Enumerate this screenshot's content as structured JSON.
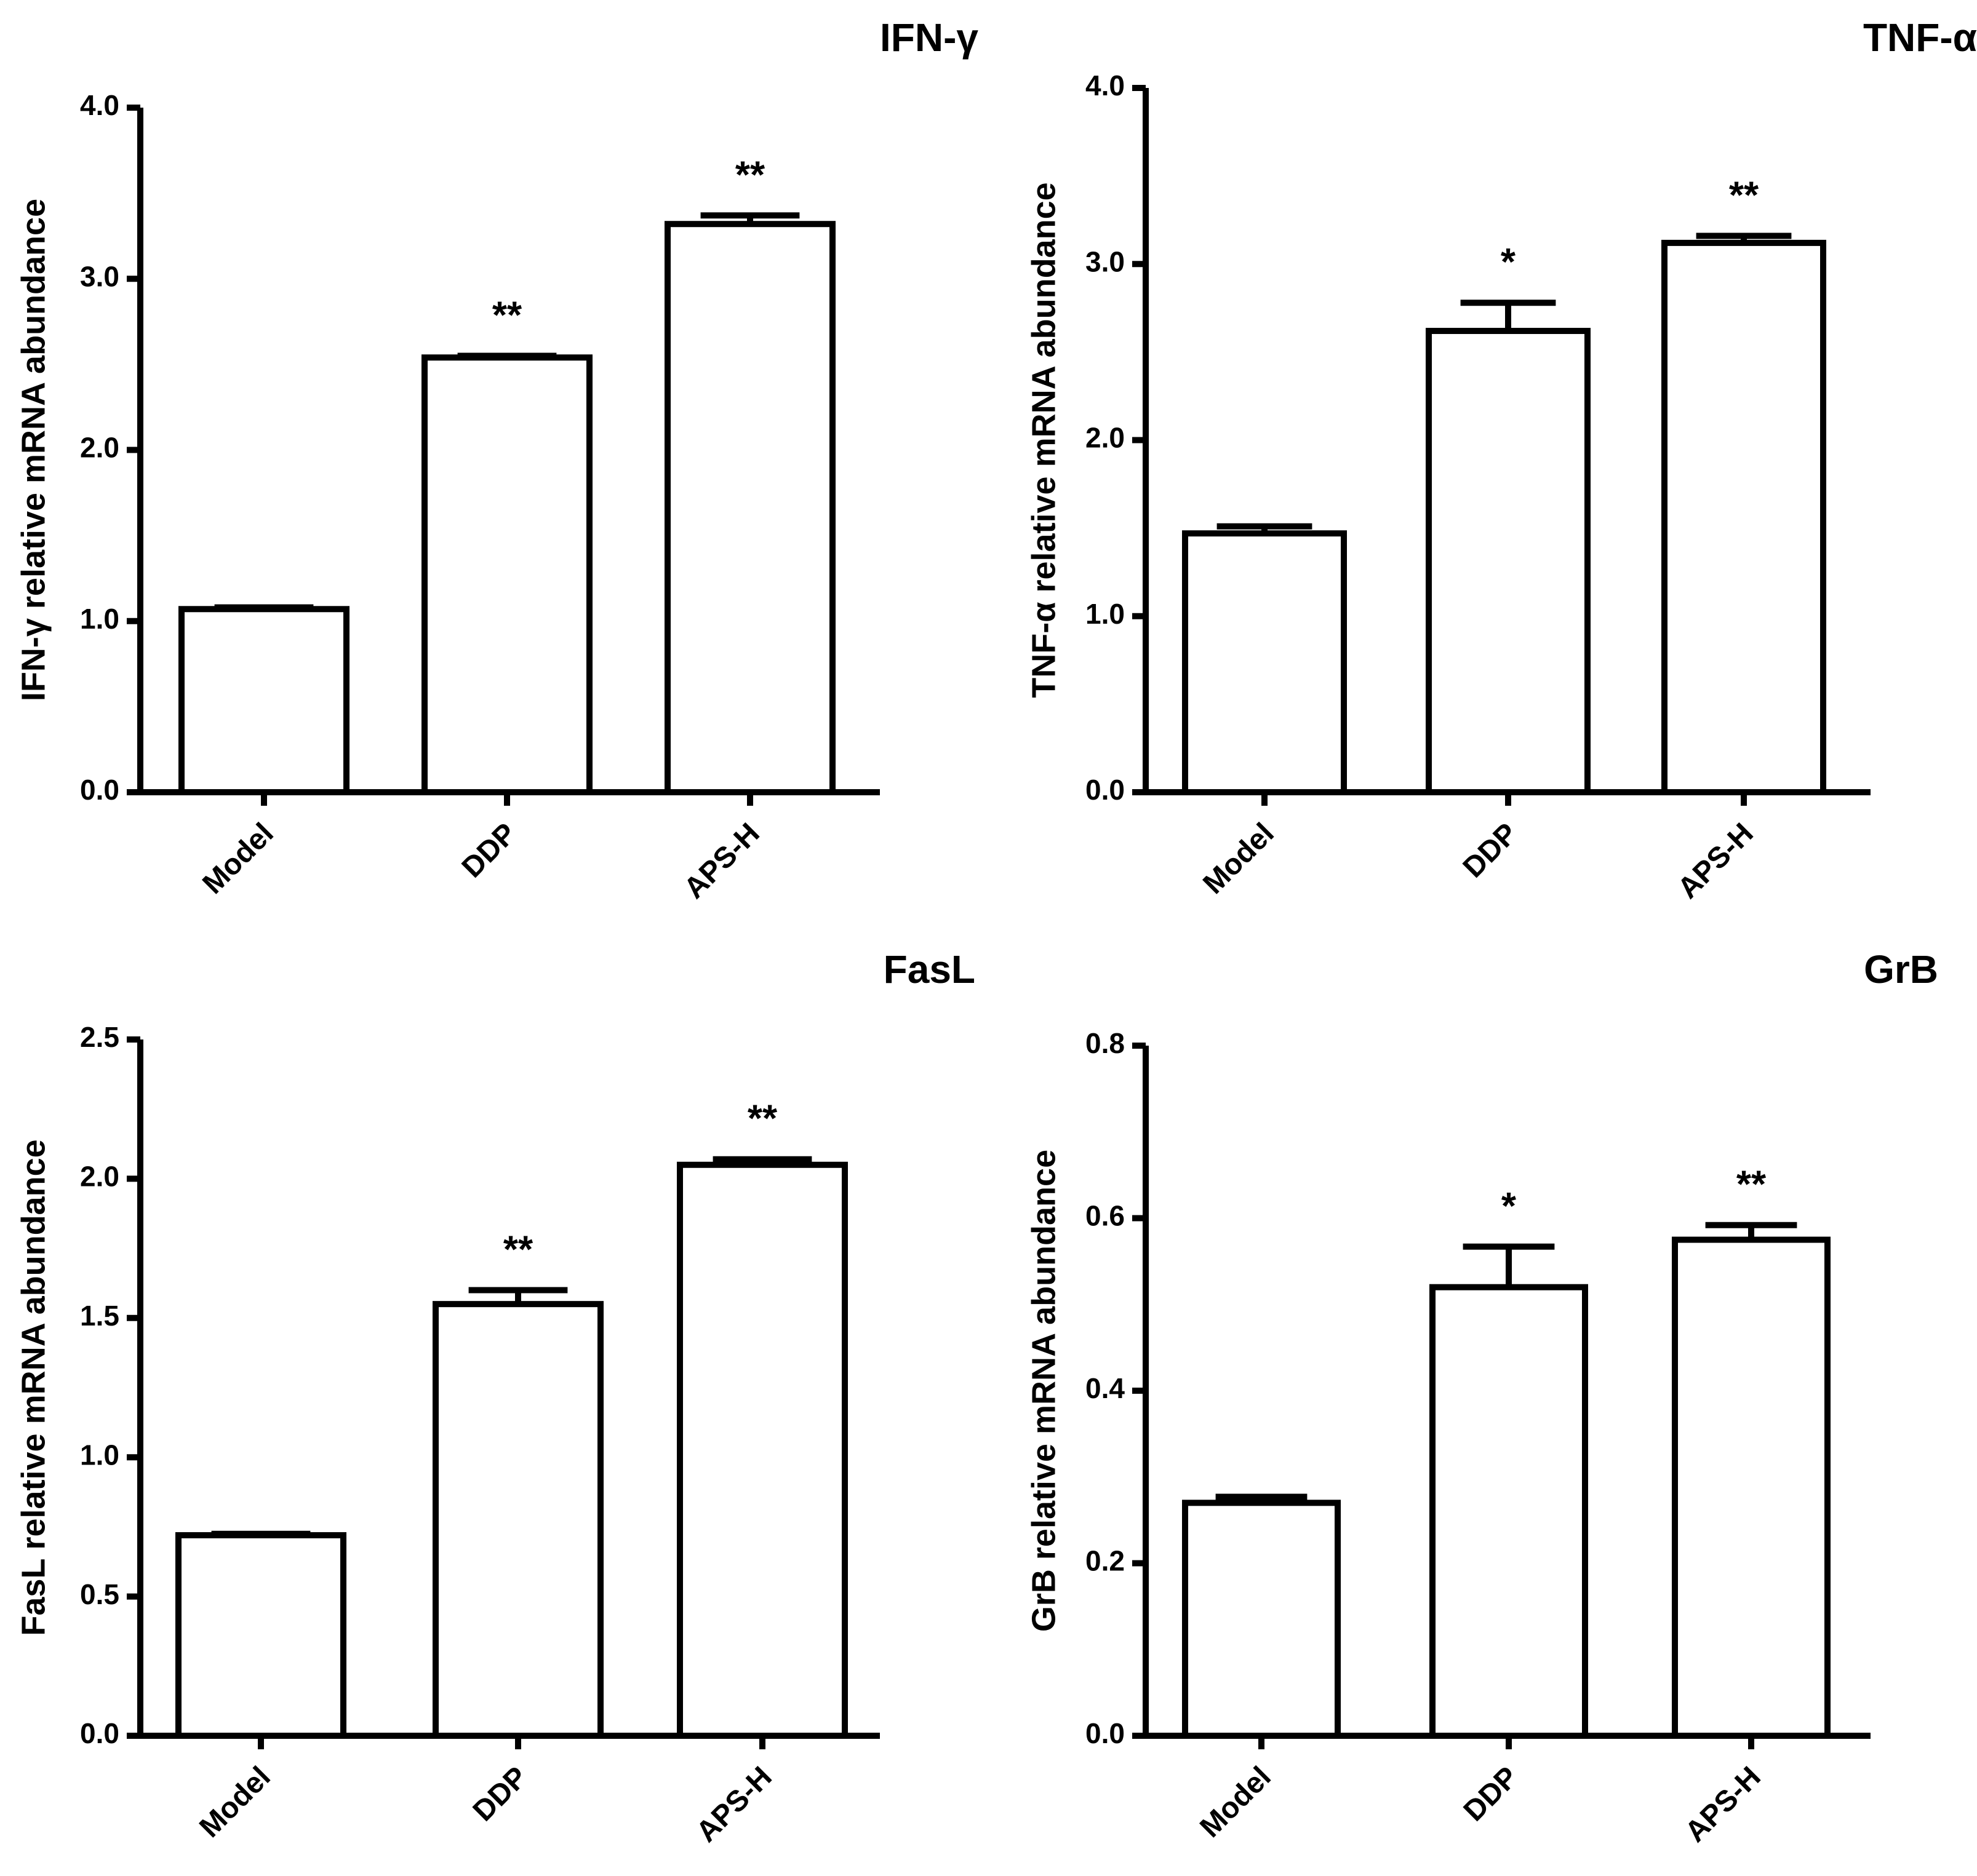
{
  "chart_data": [
    {
      "type": "bar",
      "title": "IFN-γ",
      "ylabel": "IFN-γ  relative mRNA abundance",
      "xlabel": "",
      "categories": [
        "Model",
        "DDP",
        "APS-H"
      ],
      "values": [
        1.07,
        2.54,
        3.32
      ],
      "errors": [
        0.01,
        0.01,
        0.05
      ],
      "significance": [
        "",
        "**",
        "**"
      ],
      "ylim": [
        0.0,
        4.0
      ],
      "yticks": [
        "0.0",
        "1.0",
        "2.0",
        "3.0",
        "4.0"
      ]
    },
    {
      "type": "bar",
      "title": "TNF-α",
      "ylabel": "TNF-α  relative mRNA abundance",
      "xlabel": "",
      "categories": [
        "Model",
        "DDP",
        "APS-H"
      ],
      "values": [
        1.47,
        2.62,
        3.12
      ],
      "errors": [
        0.04,
        0.16,
        0.04
      ],
      "significance": [
        "",
        "*",
        "**"
      ],
      "ylim": [
        0.0,
        4.0
      ],
      "yticks": [
        "0.0",
        "1.0",
        "2.0",
        "3.0",
        "4.0"
      ]
    },
    {
      "type": "bar",
      "title": "FasL",
      "ylabel": "FasL relative mRNA abundance",
      "xlabel": "",
      "categories": [
        "Model",
        "DDP",
        "APS-H"
      ],
      "values": [
        0.72,
        1.55,
        2.05
      ],
      "errors": [
        0.005,
        0.05,
        0.02
      ],
      "significance": [
        "",
        "**",
        "**"
      ],
      "ylim": [
        0.0,
        2.5
      ],
      "yticks": [
        "0.0",
        "0.5",
        "1.0",
        "1.5",
        "2.0",
        "2.5"
      ]
    },
    {
      "type": "bar",
      "title": "GrB",
      "ylabel": "GrB relative mRNA abundance",
      "xlabel": "",
      "categories": [
        "Model",
        "DDP",
        "APS-H"
      ],
      "values": [
        0.27,
        0.52,
        0.575
      ],
      "errors": [
        0.007,
        0.047,
        0.017
      ],
      "significance": [
        "",
        "*",
        "**"
      ],
      "ylim": [
        0.0,
        0.8
      ],
      "yticks": [
        "0.0",
        "0.2",
        "0.4",
        "0.6",
        "0.8"
      ]
    }
  ]
}
